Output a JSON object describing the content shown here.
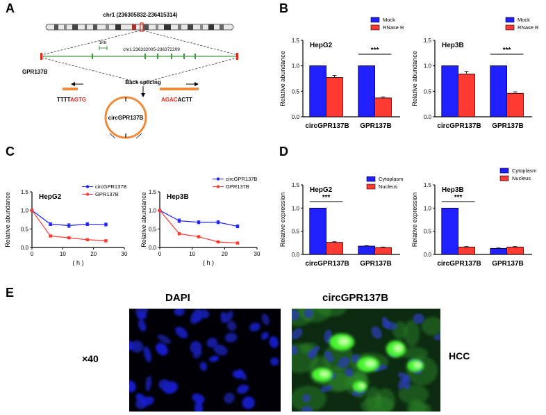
{
  "panel_labels": {
    "a": "A",
    "b": "B",
    "c": "C",
    "d": "D",
    "e": "E"
  },
  "colors": {
    "blue": "#2020ff",
    "red": "#ff3a33",
    "orange": "#ef8a3a",
    "green": "#3c9a3c",
    "accent_red": "#e8291e"
  },
  "panel_a": {
    "chromosome": "chr1 (236305832-236415314)",
    "scale": "1Kb",
    "locus": "chr1:236332005-236372209",
    "gene": "GPR137B",
    "back_splicing": "Back splicing",
    "seq_left_black": "TTTT",
    "seq_left_red": "AGTG",
    "seq_right_red": "AGAC",
    "seq_right_black": "ACTT",
    "circle_label": "circGPR137B"
  },
  "chart_data": [
    {
      "id": "B-HepG2",
      "type": "bar",
      "title": "HepG2",
      "ylabel": "Relative abundance",
      "ylim": [
        0,
        1.5
      ],
      "yticks": [
        "0.0",
        "0.5",
        "1.0",
        "1.5"
      ],
      "categories": [
        "circGPR137B",
        "GPR137B"
      ],
      "series": [
        {
          "name": "Mock",
          "values": [
            1.0,
            1.0
          ],
          "errors": [
            0,
            0
          ]
        },
        {
          "name": "RNase R",
          "values": [
            0.77,
            0.37
          ],
          "errors": [
            0.04,
            0.02
          ]
        }
      ],
      "annotation": "***",
      "legend": "top-right"
    },
    {
      "id": "B-Hep3B",
      "type": "bar",
      "title": "Hep3B",
      "ylabel": "Relative abundance",
      "ylim": [
        0,
        1.5
      ],
      "yticks": [
        "0.0",
        "0.5",
        "1.0",
        "1.5"
      ],
      "categories": [
        "circGPR137B",
        "GPR137B"
      ],
      "series": [
        {
          "name": "Mock",
          "values": [
            1.0,
            1.0
          ],
          "errors": [
            0,
            0
          ]
        },
        {
          "name": "RNase R",
          "values": [
            0.84,
            0.46
          ],
          "errors": [
            0.05,
            0.03
          ]
        }
      ],
      "annotation": "***",
      "legend": "top-right"
    },
    {
      "id": "C-HepG2",
      "type": "line",
      "title": "HepG2",
      "ylabel": "Relative abundance",
      "xlabel": "( h )",
      "xlim": [
        0,
        30
      ],
      "ylim": [
        0,
        1.5
      ],
      "xticks": [
        "0",
        "10",
        "20",
        "30"
      ],
      "yticks": [
        "0.0",
        "0.5",
        "1.0",
        "1.5"
      ],
      "x": [
        0,
        6,
        12,
        18,
        24
      ],
      "series": [
        {
          "name": "circGPR137B",
          "values": [
            1.0,
            0.63,
            0.59,
            0.63,
            0.62
          ],
          "errors": [
            0,
            0.04,
            0.05,
            0.04,
            0.04
          ]
        },
        {
          "name": "GPR137B",
          "values": [
            1.0,
            0.31,
            0.26,
            0.21,
            0.18
          ],
          "errors": [
            0,
            0.02,
            0.02,
            0.02,
            0.02
          ]
        }
      ],
      "legend": "top-right"
    },
    {
      "id": "C-Hep3B",
      "type": "line",
      "title": "Hep3B",
      "ylabel": "Relative abundance",
      "xlabel": "( h )",
      "xlim": [
        0,
        30
      ],
      "ylim": [
        0,
        1.5
      ],
      "xticks": [
        "0",
        "10",
        "20",
        "30"
      ],
      "yticks": [
        "0.0",
        "0.5",
        "1.0",
        "1.5"
      ],
      "x": [
        0,
        6,
        12,
        18,
        24
      ],
      "series": [
        {
          "name": "circGPR137B",
          "values": [
            1.0,
            0.72,
            0.68,
            0.68,
            0.57
          ],
          "errors": [
            0,
            0.05,
            0.04,
            0.04,
            0.04
          ]
        },
        {
          "name": "GPR137B",
          "values": [
            1.0,
            0.37,
            0.29,
            0.15,
            0.12
          ],
          "errors": [
            0,
            0.02,
            0.02,
            0.02,
            0.01
          ]
        }
      ],
      "legend": "top-right"
    },
    {
      "id": "D-HepG2",
      "type": "bar",
      "title": "HepG2",
      "ylabel": "Relative expression",
      "ylim": [
        0,
        1.5
      ],
      "yticks": [
        "0.0",
        "0.5",
        "1.0",
        "1.5"
      ],
      "categories": [
        "circGPR137B",
        "GPR137B"
      ],
      "series": [
        {
          "name": "Cytoplasm",
          "values": [
            1.0,
            0.18
          ],
          "errors": [
            0,
            0.01
          ]
        },
        {
          "name": "Nucleus",
          "values": [
            0.26,
            0.15
          ],
          "errors": [
            0.015,
            0.01
          ]
        }
      ],
      "annotation": "***",
      "legend": "top-right"
    },
    {
      "id": "D-Hep3B",
      "type": "bar",
      "title": "Hep3B",
      "ylabel": "Relative expression",
      "ylim": [
        0,
        1.5
      ],
      "yticks": [
        "0.0",
        "0.5",
        "1.0",
        "1.5"
      ],
      "categories": [
        "circGPR137B",
        "GPR137B"
      ],
      "series": [
        {
          "name": "Cytoplasm",
          "values": [
            1.0,
            0.13
          ],
          "errors": [
            0,
            0.01
          ]
        },
        {
          "name": "Nucleus",
          "values": [
            0.16,
            0.16
          ],
          "errors": [
            0.01,
            0.01
          ]
        }
      ],
      "annotation": "***",
      "legend": "top-right"
    }
  ],
  "panel_e": {
    "dapi_title": "DAPI",
    "circ_title": "circGPR137B",
    "magnification": "×40",
    "tissue": "HCC"
  }
}
